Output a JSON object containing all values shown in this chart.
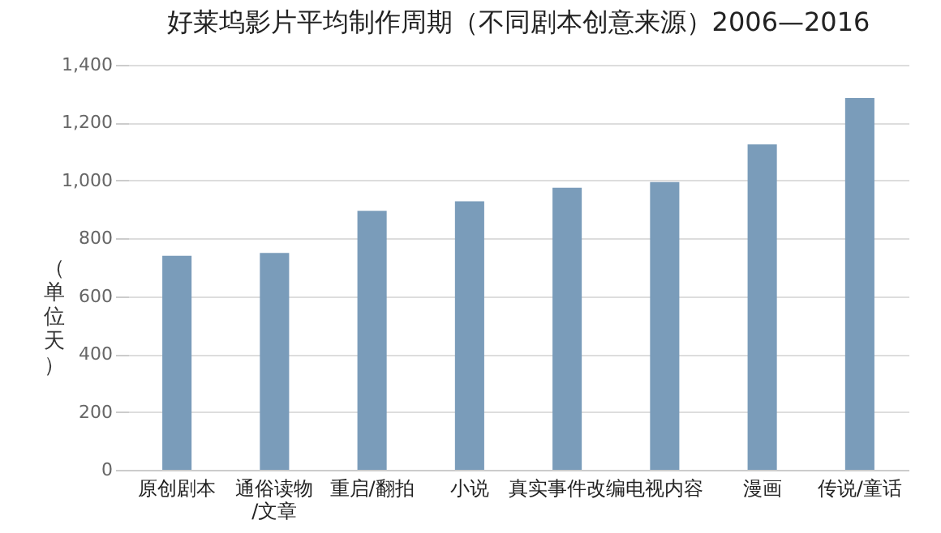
{
  "chart_data": {
    "type": "bar",
    "title": "好莱坞影片平均制作周期（不同剧本创意来源）2006—2016",
    "ylabel": "（单位天）",
    "categories": [
      "原创剧本",
      "通俗读物/文章",
      "重启/翻拍",
      "小说",
      "真实事件改编",
      "电视内容",
      "漫画",
      "传说/童话"
    ],
    "values": [
      740,
      750,
      895,
      928,
      975,
      995,
      1125,
      1285
    ],
    "color": "#7a9cba",
    "ylim": [
      0,
      1400
    ],
    "yticks": [
      0,
      200,
      400,
      600,
      800,
      {
        "value": 1000,
        "label": "1,000"
      },
      {
        "value": 1200,
        "label": "1,200"
      },
      {
        "value": 1400,
        "label": "1,400"
      }
    ],
    "grid": "y"
  }
}
